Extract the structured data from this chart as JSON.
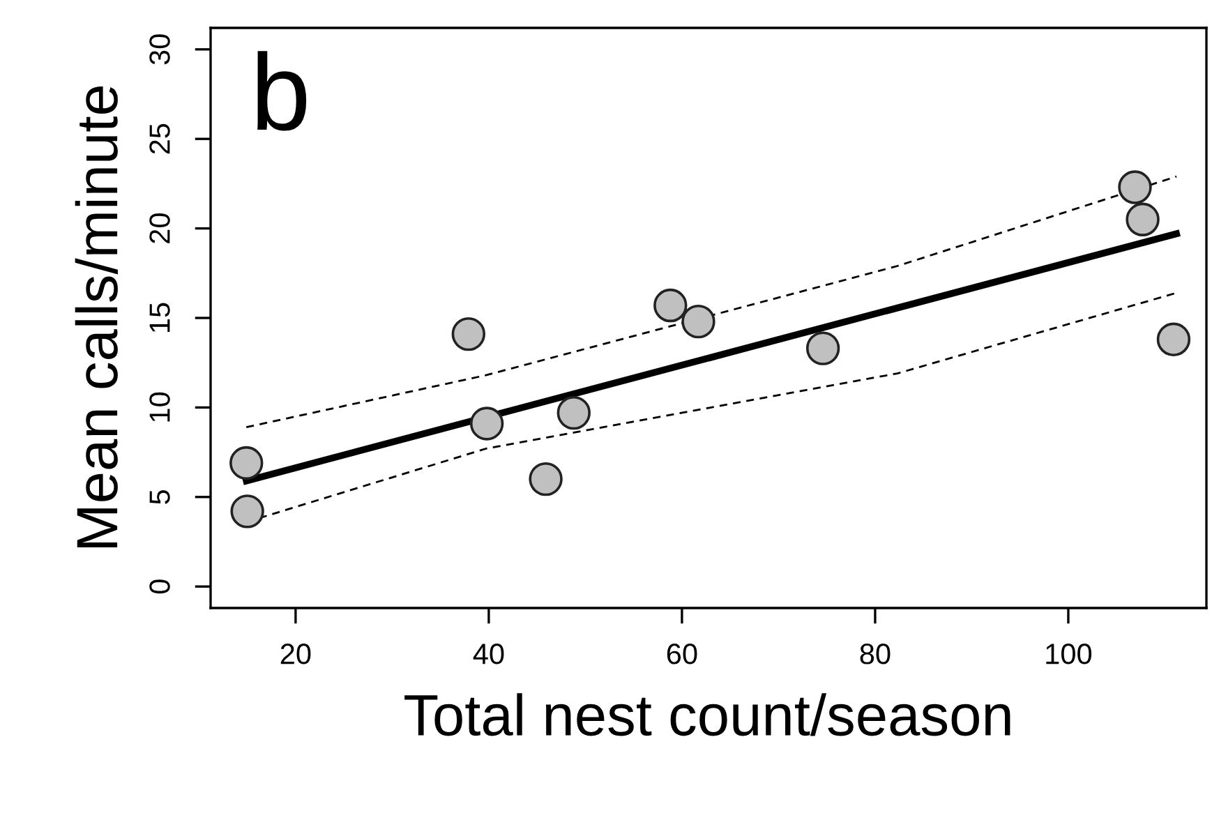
{
  "chart_data": {
    "type": "scatter",
    "xlabel": "Total nest count/season",
    "ylabel": "Mean calls/minute",
    "annotations": [
      "b"
    ],
    "xlim": [
      11.2,
      114.3
    ],
    "ylim": [
      -1.2,
      31.2
    ],
    "xticks": [
      20,
      40,
      60,
      80,
      100
    ],
    "yticks": [
      0,
      5,
      10,
      15,
      20,
      25,
      30
    ],
    "grid": false,
    "legend": false,
    "series": [
      {
        "color": "#c0c0c0",
        "marker": "circle",
        "x": [
          14.9,
          15,
          37.9,
          39.8,
          45.9,
          48.8,
          58.8,
          61.7,
          74.6,
          106.9,
          107.7,
          110.9
        ],
        "values": [
          6.9,
          4.2,
          14.1,
          9.1,
          6.0,
          9.7,
          15.7,
          14.8,
          13.3,
          22.3,
          20.5,
          13.8
        ]
      },
      {
        "type": "line",
        "color": "#000000",
        "line_style": "solid",
        "x": [
          14.9,
          111.2
        ],
        "values": [
          5.9,
          19.7
        ]
      },
      {
        "type": "line",
        "color": "#000000",
        "line_style": "dashed",
        "x": [
          14.9,
          39.7,
          82.3,
          111.2
        ],
        "values": [
          8.9,
          11.8,
          17.9,
          22.9
        ]
      },
      {
        "type": "line",
        "color": "#000000",
        "line_style": "dashed",
        "x": [
          14.9,
          39.7,
          82.3,
          111.2
        ],
        "values": [
          3.6,
          7.7,
          11.9,
          16.4
        ]
      }
    ]
  }
}
